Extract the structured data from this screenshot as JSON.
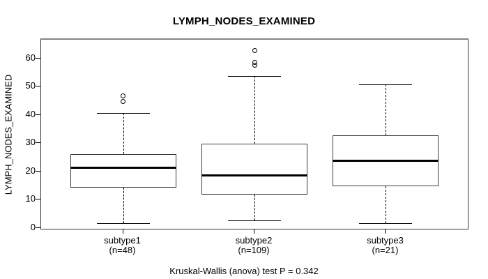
{
  "figure": {
    "title": "LYMPH_NODES_EXAMINED",
    "caption": "Kruskal-Wallis (anova) test P = 0.342"
  },
  "colors": {
    "line": "#000000",
    "median": "#000000",
    "box_fill": "#ffffff",
    "background": "#ffffff"
  },
  "chart_data": {
    "type": "boxplot",
    "title": "LYMPH_NODES_EXAMINED",
    "xlabel": "",
    "ylabel": "LYMPH_NODES_EXAMINED",
    "ylim": [
      0,
      66.9
    ],
    "y_ticks": [
      0,
      10,
      20,
      30,
      40,
      50,
      60
    ],
    "grid": false,
    "legend": "none",
    "categories": [
      "subtype1",
      "subtype2",
      "subtype3"
    ],
    "groups": [
      {
        "label": "subtype1",
        "sublabel": "(n=48)",
        "n": 48,
        "lower_whisker": 2,
        "q1": 14.5,
        "median": 21.5,
        "q3": 26.5,
        "upper_whisker": 41,
        "outliers": [
          45,
          47
        ]
      },
      {
        "label": "subtype2",
        "sublabel": "(n=109)",
        "n": 109,
        "lower_whisker": 3,
        "q1": 12,
        "median": 19,
        "q3": 30,
        "upper_whisker": 54,
        "outliers": [
          58,
          59,
          63
        ]
      },
      {
        "label": "subtype3",
        "sublabel": "(n=21)",
        "n": 21,
        "lower_whisker": 2,
        "q1": 15,
        "median": 24,
        "q3": 33,
        "upper_whisker": 51,
        "outliers": []
      }
    ],
    "annotation": "Kruskal-Wallis (anova) test P = 0.342"
  }
}
